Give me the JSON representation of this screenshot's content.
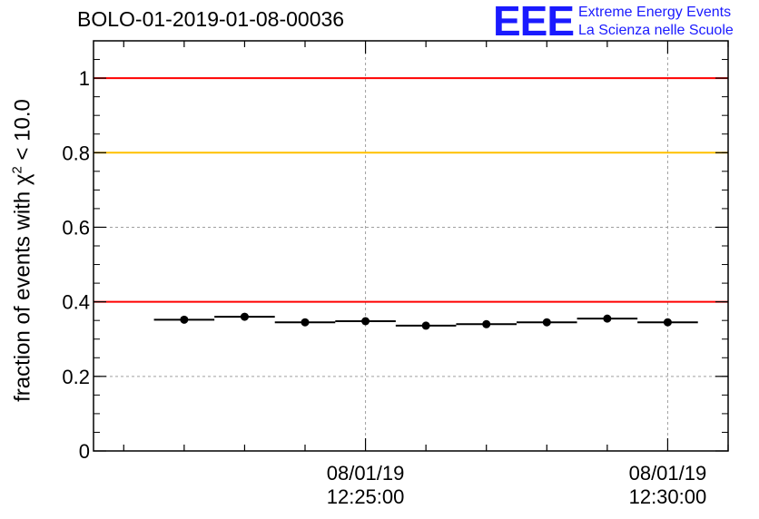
{
  "title": "BOLO-01-2019-01-08-00036",
  "logo": {
    "mark": "EEE",
    "line1": "Extreme Energy Events",
    "line2": "La Scienza nelle Scuole",
    "color": "#1a1aff"
  },
  "chart_data": {
    "type": "scatter",
    "title": "BOLO-01-2019-01-08-00036",
    "ylabel_prefix": "fraction of events with χ",
    "ylabel_sup": "2",
    "ylabel_suffix": " < 10.0",
    "xlabel": "",
    "ylim": [
      0,
      1.1
    ],
    "yticks": [
      "0",
      "0.2",
      "0.4",
      "0.6",
      "0.8",
      "1"
    ],
    "xticks": [
      {
        "date": "08/01/19",
        "time": "12:25:00"
      },
      {
        "date": "08/01/19",
        "time": "12:30:00"
      }
    ],
    "grid": true,
    "series": [
      {
        "x": [
          "12:22:00",
          "12:23:00",
          "12:24:00",
          "12:25:00",
          "12:26:00",
          "12:27:00",
          "12:28:00",
          "12:29:00",
          "12:30:00"
        ],
        "values": [
          0.352,
          0.36,
          0.345,
          0.348,
          0.336,
          0.34,
          0.345,
          0.355,
          0.345
        ],
        "color": "#000000"
      }
    ],
    "reference_lines": [
      {
        "y": 1.0,
        "color": "#ff0000"
      },
      {
        "y": 0.8,
        "color": "#ffc000"
      },
      {
        "y": 0.4,
        "color": "#ff0000"
      }
    ]
  }
}
